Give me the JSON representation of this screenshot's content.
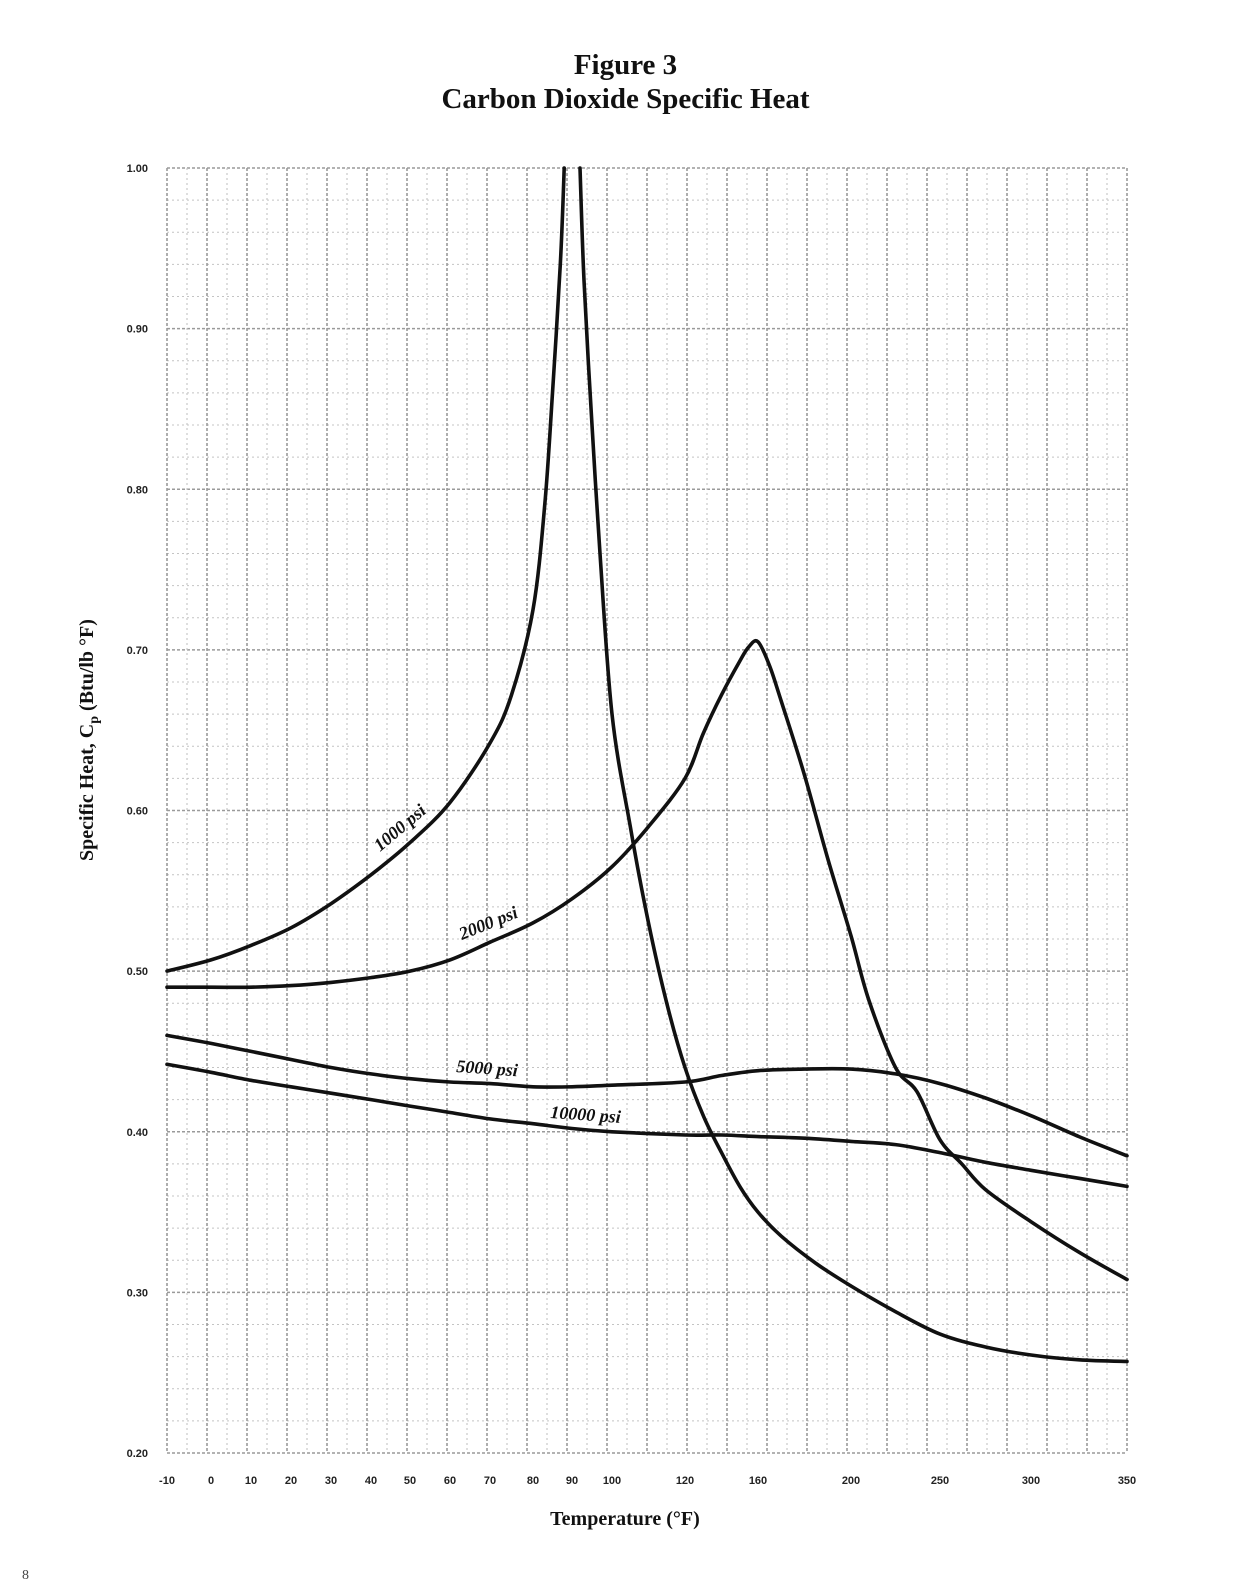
{
  "figure": {
    "number": "Figure 3",
    "title": "Carbon Dioxide Specific Heat"
  },
  "page_mark": "8",
  "chart_data": {
    "type": "line",
    "title": "Carbon Dioxide Specific Heat",
    "xlabel": "Temperature (°F)",
    "ylabel_main": "Specific Heat, C",
    "ylabel_sub": "p",
    "ylabel_units": " (Btu/lb °F)",
    "x_tick_labels": [
      "-10",
      "0",
      "10",
      "20",
      "30",
      "40",
      "50",
      "60",
      "70",
      "80",
      "90",
      "100",
      "120",
      "160",
      "200",
      "250",
      "300",
      "350"
    ],
    "y_tick_labels": [
      "1.00",
      "0.90",
      "0.80",
      "0.70",
      "0.60",
      "0.50",
      "0.40",
      "0.30",
      "0.20"
    ],
    "ylim": [
      0.2,
      1.0
    ],
    "grid": true,
    "x_scale": "non-uniform (10 °F steps from -10 to 100, wider steps above 100)",
    "series": [
      {
        "name": "1000 psi",
        "points": [
          [
            -10,
            0.5
          ],
          [
            0,
            0.507
          ],
          [
            10,
            0.516
          ],
          [
            20,
            0.527
          ],
          [
            30,
            0.542
          ],
          [
            40,
            0.56
          ],
          [
            50,
            0.58
          ],
          [
            60,
            0.605
          ],
          [
            70,
            0.642
          ],
          [
            75,
            0.672
          ],
          [
            80,
            0.725
          ],
          [
            83,
            0.79
          ],
          [
            85,
            0.86
          ],
          [
            87,
            0.94
          ],
          [
            88,
            1.0
          ]
        ]
      },
      {
        "name": "1000 psi",
        "points": [
          [
            92,
            1.0
          ],
          [
            93,
            0.93
          ],
          [
            95,
            0.84
          ],
          [
            97,
            0.76
          ],
          [
            100,
            0.66
          ],
          [
            105,
            0.59
          ],
          [
            110,
            0.53
          ],
          [
            115,
            0.48
          ],
          [
            120,
            0.44
          ],
          [
            130,
            0.41
          ],
          [
            140,
            0.387
          ],
          [
            150,
            0.366
          ],
          [
            160,
            0.35
          ],
          [
            170,
            0.335
          ],
          [
            185,
            0.318
          ],
          [
            200,
            0.304
          ],
          [
            225,
            0.288
          ],
          [
            250,
            0.274
          ],
          [
            275,
            0.266
          ],
          [
            300,
            0.261
          ],
          [
            325,
            0.258
          ],
          [
            350,
            0.257
          ]
        ]
      },
      {
        "name": "2000 psi",
        "points": [
          [
            -10,
            0.49
          ],
          [
            0,
            0.49
          ],
          [
            10,
            0.49
          ],
          [
            20,
            0.491
          ],
          [
            30,
            0.493
          ],
          [
            40,
            0.496
          ],
          [
            50,
            0.5
          ],
          [
            60,
            0.507
          ],
          [
            70,
            0.518
          ],
          [
            80,
            0.53
          ],
          [
            90,
            0.545
          ],
          [
            100,
            0.565
          ],
          [
            110,
            0.59
          ],
          [
            120,
            0.62
          ],
          [
            130,
            0.648
          ],
          [
            140,
            0.672
          ],
          [
            150,
            0.693
          ],
          [
            155,
            0.702
          ],
          [
            160,
            0.705
          ],
          [
            165,
            0.69
          ],
          [
            170,
            0.668
          ],
          [
            180,
            0.622
          ],
          [
            190,
            0.57
          ],
          [
            200,
            0.522
          ],
          [
            210,
            0.482
          ],
          [
            225,
            0.44
          ],
          [
            237,
            0.425
          ],
          [
            250,
            0.395
          ],
          [
            262,
            0.38
          ],
          [
            275,
            0.364
          ],
          [
            300,
            0.344
          ],
          [
            325,
            0.325
          ],
          [
            350,
            0.308
          ]
        ]
      },
      {
        "name": "5000 psi",
        "points": [
          [
            -10,
            0.46
          ],
          [
            0,
            0.455
          ],
          [
            10,
            0.45
          ],
          [
            20,
            0.445
          ],
          [
            30,
            0.44
          ],
          [
            40,
            0.436
          ],
          [
            50,
            0.433
          ],
          [
            60,
            0.431
          ],
          [
            70,
            0.43
          ],
          [
            80,
            0.428
          ],
          [
            90,
            0.428
          ],
          [
            100,
            0.429
          ],
          [
            120,
            0.431
          ],
          [
            140,
            0.435
          ],
          [
            160,
            0.438
          ],
          [
            180,
            0.439
          ],
          [
            200,
            0.439
          ],
          [
            225,
            0.436
          ],
          [
            250,
            0.43
          ],
          [
            275,
            0.421
          ],
          [
            300,
            0.41
          ],
          [
            325,
            0.397
          ],
          [
            350,
            0.385
          ]
        ]
      },
      {
        "name": "10000 psi",
        "points": [
          [
            -10,
            0.442
          ],
          [
            0,
            0.437
          ],
          [
            10,
            0.432
          ],
          [
            20,
            0.428
          ],
          [
            30,
            0.424
          ],
          [
            40,
            0.42
          ],
          [
            50,
            0.416
          ],
          [
            60,
            0.412
          ],
          [
            70,
            0.408
          ],
          [
            80,
            0.405
          ],
          [
            90,
            0.402
          ],
          [
            100,
            0.4
          ],
          [
            120,
            0.398
          ],
          [
            140,
            0.398
          ],
          [
            160,
            0.397
          ],
          [
            180,
            0.396
          ],
          [
            200,
            0.394
          ],
          [
            225,
            0.392
          ],
          [
            250,
            0.387
          ],
          [
            275,
            0.381
          ],
          [
            300,
            0.376
          ],
          [
            325,
            0.371
          ],
          [
            350,
            0.366
          ]
        ]
      }
    ]
  }
}
